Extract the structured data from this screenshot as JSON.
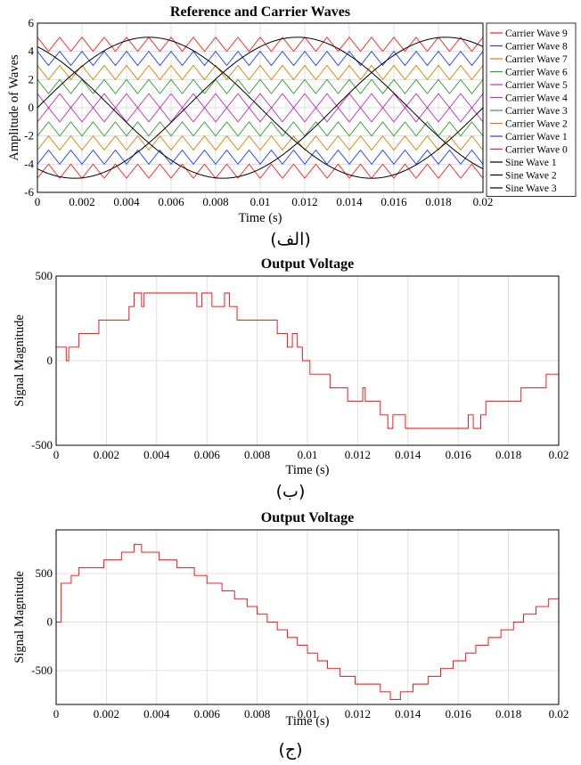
{
  "captions": [
    "(الف)",
    "(ب)",
    "(ج)"
  ],
  "chart_data": [
    {
      "type": "line",
      "title": "Reference and Carrier Waves",
      "xlabel": "Time (s)",
      "ylabel": "Amplitude of Waves",
      "xlim": [
        0,
        0.02
      ],
      "ylim": [
        -6,
        6
      ],
      "xticks": [
        "0",
        "0.002",
        "0.004",
        "0.006",
        "0.008",
        "0.01",
        "0.012",
        "0.014",
        "0.016",
        "0.018",
        "0.02"
      ],
      "yticks": [
        "6",
        "4",
        "2",
        "0",
        "-2",
        "-4",
        "-6"
      ],
      "grid": true,
      "legend_position": "right-outside",
      "carrier_frequency_hz": 1000,
      "series": [
        {
          "name": "Carrier Wave 9",
          "color": "#ff2020",
          "kind": "triangle",
          "min": 4,
          "max": 5,
          "phase": 0
        },
        {
          "name": "Carrier Wave 8",
          "color": "#2040ff",
          "kind": "triangle",
          "min": 3,
          "max": 4,
          "phase": 0
        },
        {
          "name": "Carrier Wave 7",
          "color": "#e08000",
          "kind": "triangle",
          "min": 2,
          "max": 3,
          "phase": 0
        },
        {
          "name": "Carrier Wave 6",
          "color": "#30a030",
          "kind": "triangle",
          "min": 1,
          "max": 2,
          "phase": 0
        },
        {
          "name": "Carrier Wave 5",
          "color": "#c030c0",
          "kind": "triangle",
          "min": 0,
          "max": 1,
          "phase": 0
        },
        {
          "name": "Carrier Wave 4",
          "color": "#c030c0",
          "kind": "triangle",
          "min": -1,
          "max": 0,
          "phase": 0.5
        },
        {
          "name": "Carrier Wave 3",
          "color": "#30a030",
          "kind": "triangle",
          "min": -2,
          "max": -1,
          "phase": 0.5
        },
        {
          "name": "Carrier Wave 2",
          "color": "#e08000",
          "kind": "triangle",
          "min": -3,
          "max": -2,
          "phase": 0.5
        },
        {
          "name": "Carrier Wave 1",
          "color": "#2040ff",
          "kind": "triangle",
          "min": -4,
          "max": -3,
          "phase": 0.5
        },
        {
          "name": "Carrier Wave 0",
          "color": "#ff2020",
          "kind": "triangle",
          "min": -5,
          "max": -4,
          "phase": 0.5
        },
        {
          "name": "Sine Wave 1",
          "color": "#000000",
          "kind": "sine",
          "amplitude": 5,
          "frequency_hz": 50,
          "phase_deg": 0
        },
        {
          "name": "Sine Wave 2",
          "color": "#000000",
          "kind": "sine",
          "amplitude": 5,
          "frequency_hz": 50,
          "phase_deg": -120
        },
        {
          "name": "Sine Wave 3",
          "color": "#000000",
          "kind": "sine",
          "amplitude": 5,
          "frequency_hz": 50,
          "phase_deg": 120
        }
      ]
    },
    {
      "type": "line",
      "title": "Output Voltage",
      "xlabel": "Time (s)",
      "ylabel": "Signal Magnitude",
      "xlim": [
        0,
        0.02
      ],
      "ylim": [
        -500,
        500
      ],
      "xticks": [
        "0",
        "0.002",
        "0.004",
        "0.006",
        "0.008",
        "0.01",
        "0.012",
        "0.014",
        "0.016",
        "0.018",
        "0.02"
      ],
      "yticks": [
        "500",
        "0",
        "-500"
      ],
      "grid": true,
      "series": [
        {
          "color": "#ff0000",
          "kind": "step",
          "x": [
            0,
            0.0004,
            0.0005,
            0.0009,
            0.0017,
            0.0029,
            0.0031,
            0.0034,
            0.0035,
            0.0039,
            0.0056,
            0.0058,
            0.0062,
            0.0067,
            0.0069,
            0.0072,
            0.0079,
            0.0088,
            0.0092,
            0.0094,
            0.0096,
            0.0098,
            0.0101,
            0.0104,
            0.0109,
            0.0116,
            0.0122,
            0.0123,
            0.0129,
            0.0132,
            0.0134,
            0.0139,
            0.0159,
            0.0164,
            0.0166,
            0.0169,
            0.0171,
            0.0175,
            0.0185,
            0.0195,
            0.02
          ],
          "y": [
            80,
            0,
            80,
            160,
            240,
            320,
            400,
            320,
            400,
            400,
            320,
            400,
            320,
            400,
            320,
            240,
            240,
            160,
            80,
            160,
            80,
            0,
            -80,
            -80,
            -160,
            -240,
            -160,
            -240,
            -320,
            -400,
            -320,
            -400,
            -400,
            -320,
            -400,
            -320,
            -240,
            -240,
            -160,
            -80,
            0
          ]
        }
      ]
    },
    {
      "type": "line",
      "title": "Output Voltage",
      "xlabel": "Time (s)",
      "ylabel": "Signal Magnitude",
      "xlim": [
        0,
        0.02
      ],
      "ylim": [
        -850,
        950
      ],
      "xticks": [
        "0",
        "0.002",
        "0.004",
        "0.006",
        "0.008",
        "0.01",
        "0.012",
        "0.014",
        "0.016",
        "0.018",
        "0.02"
      ],
      "yticks": [
        "500",
        "0",
        "-500"
      ],
      "grid": true,
      "series": [
        {
          "color": "#ff0000",
          "kind": "step",
          "x": [
            0,
            0.0002,
            0.0006,
            0.0009,
            0.0014,
            0.0019,
            0.0026,
            0.0031,
            0.0034,
            0.0037,
            0.0041,
            0.0048,
            0.0055,
            0.006,
            0.0066,
            0.0071,
            0.0076,
            0.008,
            0.0084,
            0.0088,
            0.0092,
            0.0096,
            0.01,
            0.0104,
            0.0108,
            0.0113,
            0.0119,
            0.0124,
            0.0129,
            0.0133,
            0.0137,
            0.0142,
            0.0148,
            0.0153,
            0.0158,
            0.0163,
            0.0167,
            0.0172,
            0.0177,
            0.0182,
            0.0186,
            0.0191,
            0.0196,
            0.02
          ],
          "y": [
            0,
            400,
            480,
            560,
            560,
            640,
            720,
            800,
            720,
            720,
            640,
            560,
            480,
            400,
            320,
            240,
            160,
            80,
            0,
            -80,
            -160,
            -240,
            -320,
            -400,
            -480,
            -560,
            -640,
            -640,
            -720,
            -800,
            -720,
            -640,
            -560,
            -480,
            -400,
            -320,
            -240,
            -160,
            -80,
            0,
            80,
            160,
            240,
            320
          ]
        }
      ]
    }
  ]
}
